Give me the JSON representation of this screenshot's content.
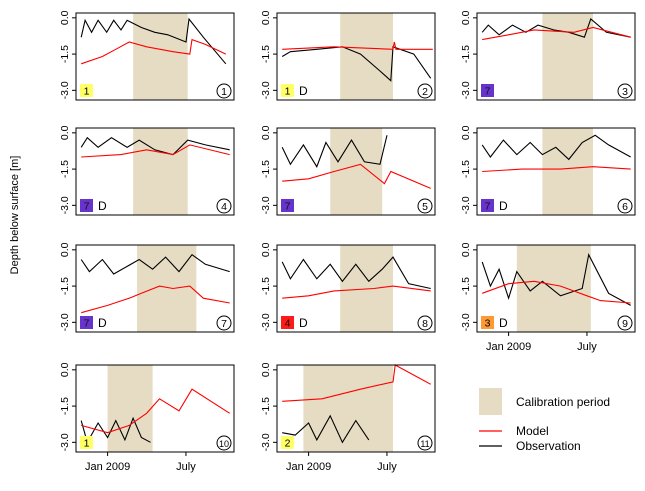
{
  "ylabel": "Depth below surface [m]",
  "legend": {
    "calibration_label": "Calibration period",
    "model_label": "Model",
    "observation_label": "Observation",
    "calibration_color": "#e6dcc3",
    "model_color": "#ff0000",
    "observation_color": "#000000"
  },
  "class_colors": {
    "1": "#ffff66",
    "2": "#ffff66",
    "3": "#ff9933",
    "4": "#ff1a1a",
    "7": "#6633cc"
  },
  "chart_data": {
    "type": "line",
    "y_axis": {
      "ticks": [
        0.0,
        -1.5,
        -3.0
      ],
      "tick_labels": [
        "0.0",
        "-1.5",
        "-3.0"
      ],
      "ylim": [
        -3.4,
        0.2
      ]
    },
    "x_axis": {
      "tick_labels": [
        "Jan 2009",
        "July"
      ],
      "range": [
        "2008-10-20",
        "2009-10-20"
      ]
    },
    "panels": [
      {
        "id": "1",
        "class": "1",
        "flag": "",
        "cal": [
          "2009-03-01",
          "2009-07-05"
        ],
        "model": [
          [
            "2008-11-01",
            -1.9
          ],
          [
            "2008-12-20",
            -1.6
          ],
          [
            "2009-01-20",
            -1.3
          ],
          [
            "2009-02-20",
            -1.0
          ],
          [
            "2009-04-01",
            -1.2
          ],
          [
            "2009-06-01",
            -1.4
          ],
          [
            "2009-07-10",
            -1.5
          ],
          [
            "2009-07-15",
            -0.9
          ],
          [
            "2009-08-15",
            -1.1
          ],
          [
            "2009-10-01",
            -1.5
          ]
        ],
        "obs": [
          [
            "2008-11-01",
            -0.8
          ],
          [
            "2008-11-10",
            -0.1
          ],
          [
            "2008-11-25",
            -0.6
          ],
          [
            "2008-12-10",
            -0.1
          ],
          [
            "2008-12-30",
            -0.6
          ],
          [
            "2009-01-15",
            -0.1
          ],
          [
            "2009-02-01",
            -0.5
          ],
          [
            "2009-02-15",
            -0.1
          ],
          [
            "2009-03-20",
            -0.4
          ],
          [
            "2009-04-20",
            -0.6
          ],
          [
            "2009-05-20",
            -0.7
          ],
          [
            "2009-07-01",
            -1.0
          ],
          [
            "2009-07-08",
            -0.05
          ],
          [
            "2009-08-10",
            -0.8
          ],
          [
            "2009-10-01",
            -1.9
          ]
        ]
      },
      {
        "id": "2",
        "class": "1",
        "flag": "D",
        "cal": [
          "2009-03-15",
          "2009-07-15"
        ],
        "model": [
          [
            "2008-11-01",
            -1.3
          ],
          [
            "2009-03-01",
            -1.2
          ],
          [
            "2009-07-15",
            -1.3
          ],
          [
            "2009-07-18",
            -1.0
          ],
          [
            "2009-07-22",
            -1.3
          ],
          [
            "2009-10-15",
            -1.3
          ]
        ],
        "obs": [
          [
            "2008-11-01",
            -1.6
          ],
          [
            "2008-11-20",
            -1.4
          ],
          [
            "2009-01-20",
            -1.3
          ],
          [
            "2009-03-20",
            -1.2
          ],
          [
            "2009-05-01",
            -1.5
          ],
          [
            "2009-06-15",
            -2.2
          ],
          [
            "2009-07-10",
            -2.6
          ],
          [
            "2009-07-15",
            -1.2
          ],
          [
            "2009-09-01",
            -1.5
          ],
          [
            "2009-10-10",
            -2.5
          ]
        ]
      },
      {
        "id": "3",
        "class": "7",
        "flag": "",
        "cal": [
          "2009-03-20",
          "2009-07-15"
        ],
        "model": [
          [
            "2008-11-01",
            -0.9
          ],
          [
            "2009-01-01",
            -0.7
          ],
          [
            "2009-03-01",
            -0.5
          ],
          [
            "2009-06-01",
            -0.6
          ],
          [
            "2009-07-15",
            -0.4
          ],
          [
            "2009-10-10",
            -0.8
          ]
        ],
        "obs": [
          [
            "2008-11-01",
            -0.6
          ],
          [
            "2008-11-15",
            -0.3
          ],
          [
            "2008-12-10",
            -0.7
          ],
          [
            "2009-01-10",
            -0.3
          ],
          [
            "2009-02-10",
            -0.6
          ],
          [
            "2009-03-10",
            -0.3
          ],
          [
            "2009-04-15",
            -0.5
          ],
          [
            "2009-05-20",
            -0.6
          ],
          [
            "2009-06-25",
            -0.8
          ],
          [
            "2009-07-10",
            -0.05
          ],
          [
            "2009-08-15",
            -0.6
          ],
          [
            "2009-10-10",
            -0.8
          ]
        ]
      },
      {
        "id": "4",
        "class": "7",
        "flag": "D",
        "cal": [
          "2009-03-01",
          "2009-07-05"
        ],
        "model": [
          [
            "2008-11-01",
            -1.0
          ],
          [
            "2009-02-01",
            -0.9
          ],
          [
            "2009-04-01",
            -0.7
          ],
          [
            "2009-06-01",
            -0.9
          ],
          [
            "2009-07-10",
            -0.5
          ],
          [
            "2009-10-10",
            -0.9
          ]
        ],
        "obs": [
          [
            "2008-11-01",
            -0.6
          ],
          [
            "2008-11-15",
            -0.2
          ],
          [
            "2008-12-10",
            -0.6
          ],
          [
            "2009-01-10",
            -0.2
          ],
          [
            "2009-02-15",
            -0.6
          ],
          [
            "2009-03-15",
            -0.3
          ],
          [
            "2009-04-20",
            -0.7
          ],
          [
            "2009-06-01",
            -0.9
          ],
          [
            "2009-07-05",
            -0.3
          ],
          [
            "2009-08-15",
            -0.5
          ],
          [
            "2009-10-10",
            -0.7
          ]
        ]
      },
      {
        "id": "5",
        "class": "7",
        "flag": "",
        "cal": [
          "2009-02-20",
          "2009-06-20"
        ],
        "model": [
          [
            "2008-11-01",
            -2.0
          ],
          [
            "2009-01-01",
            -1.9
          ],
          [
            "2009-03-01",
            -1.6
          ],
          [
            "2009-05-01",
            -1.3
          ],
          [
            "2009-06-25",
            -2.1
          ],
          [
            "2009-07-10",
            -1.6
          ],
          [
            "2009-10-10",
            -2.3
          ]
        ],
        "obs": [
          [
            "2008-11-01",
            -0.6
          ],
          [
            "2008-11-20",
            -1.3
          ],
          [
            "2008-12-20",
            -0.5
          ],
          [
            "2009-01-20",
            -1.4
          ],
          [
            "2009-02-10",
            -0.4
          ],
          [
            "2009-03-10",
            -1.2
          ],
          [
            "2009-04-10",
            -0.3
          ],
          [
            "2009-05-10",
            -1.2
          ],
          [
            "2009-06-15",
            -1.3
          ],
          [
            "2009-07-01",
            -0.1
          ]
        ]
      },
      {
        "id": "6",
        "class": "7",
        "flag": "D",
        "cal": [
          "2009-03-20",
          "2009-07-15"
        ],
        "model": [
          [
            "2008-11-01",
            -1.6
          ],
          [
            "2009-02-01",
            -1.5
          ],
          [
            "2009-05-01",
            -1.5
          ],
          [
            "2009-07-15",
            -1.4
          ],
          [
            "2009-10-10",
            -1.5
          ]
        ],
        "obs": [
          [
            "2008-11-01",
            -0.5
          ],
          [
            "2008-11-20",
            -1.0
          ],
          [
            "2008-12-20",
            -0.3
          ],
          [
            "2009-01-20",
            -0.9
          ],
          [
            "2009-02-20",
            -0.4
          ],
          [
            "2009-03-20",
            -0.9
          ],
          [
            "2009-04-20",
            -0.6
          ],
          [
            "2009-05-20",
            -1.1
          ],
          [
            "2009-06-20",
            -0.4
          ],
          [
            "2009-07-20",
            -0.1
          ],
          [
            "2009-08-20",
            -0.5
          ],
          [
            "2009-10-10",
            -1.0
          ]
        ]
      },
      {
        "id": "7",
        "class": "7",
        "flag": "D",
        "cal": [
          "2009-03-10",
          "2009-07-25"
        ],
        "model": [
          [
            "2008-11-01",
            -2.6
          ],
          [
            "2009-01-01",
            -2.3
          ],
          [
            "2009-02-20",
            -2.0
          ],
          [
            "2009-03-20",
            -1.8
          ],
          [
            "2009-05-01",
            -1.5
          ],
          [
            "2009-06-01",
            -1.6
          ],
          [
            "2009-07-10",
            -1.5
          ],
          [
            "2009-08-10",
            -2.0
          ],
          [
            "2009-10-10",
            -2.2
          ]
        ],
        "obs": [
          [
            "2008-11-01",
            -0.4
          ],
          [
            "2008-11-20",
            -0.9
          ],
          [
            "2008-12-20",
            -0.4
          ],
          [
            "2009-01-15",
            -1.0
          ],
          [
            "2009-03-15",
            -0.4
          ],
          [
            "2009-04-15",
            -0.8
          ],
          [
            "2009-05-15",
            -0.3
          ],
          [
            "2009-06-15",
            -0.9
          ],
          [
            "2009-07-15",
            -0.2
          ],
          [
            "2009-08-15",
            -0.6
          ],
          [
            "2009-10-10",
            -0.9
          ]
        ]
      },
      {
        "id": "8",
        "class": "4",
        "flag": "D",
        "cal": [
          "2009-03-15",
          "2009-07-15"
        ],
        "model": [
          [
            "2008-11-01",
            -2.0
          ],
          [
            "2009-01-01",
            -1.9
          ],
          [
            "2009-03-01",
            -1.7
          ],
          [
            "2009-06-01",
            -1.6
          ],
          [
            "2009-07-15",
            -1.5
          ],
          [
            "2009-10-10",
            -1.7
          ]
        ],
        "obs": [
          [
            "2008-11-01",
            -0.5
          ],
          [
            "2008-11-20",
            -1.2
          ],
          [
            "2008-12-20",
            -0.4
          ],
          [
            "2009-01-20",
            -1.2
          ],
          [
            "2009-02-20",
            -0.6
          ],
          [
            "2009-03-20",
            -1.3
          ],
          [
            "2009-04-20",
            -0.6
          ],
          [
            "2009-05-20",
            -1.3
          ],
          [
            "2009-06-20",
            -0.8
          ],
          [
            "2009-07-15",
            -0.3
          ],
          [
            "2009-08-20",
            -1.4
          ],
          [
            "2009-10-10",
            -1.6
          ]
        ]
      },
      {
        "id": "9",
        "class": "3",
        "flag": "D",
        "cal": [
          "2009-01-20",
          "2009-07-10"
        ],
        "model": [
          [
            "2008-11-01",
            -1.8
          ],
          [
            "2009-01-01",
            -1.4
          ],
          [
            "2009-03-01",
            -1.3
          ],
          [
            "2009-05-01",
            -1.5
          ],
          [
            "2009-07-01",
            -1.9
          ],
          [
            "2009-08-01",
            -2.1
          ],
          [
            "2009-10-10",
            -2.2
          ]
        ],
        "obs": [
          [
            "2008-11-01",
            -0.5
          ],
          [
            "2008-11-20",
            -1.5
          ],
          [
            "2008-12-10",
            -0.8
          ],
          [
            "2009-01-01",
            -2.0
          ],
          [
            "2009-01-20",
            -0.9
          ],
          [
            "2009-02-20",
            -1.7
          ],
          [
            "2009-03-20",
            -1.3
          ],
          [
            "2009-05-01",
            -1.9
          ],
          [
            "2009-06-20",
            -1.6
          ],
          [
            "2009-07-05",
            -0.2
          ],
          [
            "2009-08-20",
            -1.8
          ],
          [
            "2009-10-10",
            -2.3
          ]
        ]
      },
      {
        "id": "10",
        "class": "1",
        "flag": "",
        "cal": [
          "2009-01-01",
          "2009-04-15"
        ],
        "model": [
          [
            "2008-11-01",
            -2.3
          ],
          [
            "2009-01-01",
            -2.6
          ],
          [
            "2009-02-20",
            -2.3
          ],
          [
            "2009-04-01",
            -1.8
          ],
          [
            "2009-05-01",
            -1.2
          ],
          [
            "2009-06-15",
            -1.7
          ],
          [
            "2009-07-15",
            -0.8
          ],
          [
            "2009-10-10",
            -1.8
          ]
        ],
        "obs": [
          [
            "2008-11-01",
            -2.1
          ],
          [
            "2008-11-15",
            -3.0
          ],
          [
            "2008-12-10",
            -2.2
          ],
          [
            "2009-01-01",
            -2.8
          ],
          [
            "2009-01-20",
            -2.1
          ],
          [
            "2009-02-10",
            -2.9
          ],
          [
            "2009-03-01",
            -2.0
          ],
          [
            "2009-03-20",
            -2.8
          ],
          [
            "2009-04-10",
            -3.0
          ]
        ]
      },
      {
        "id": "11",
        "class": "2",
        "flag": "",
        "cal": [
          "2008-12-20",
          "2009-07-15"
        ],
        "model": [
          [
            "2008-11-01",
            -1.3
          ],
          [
            "2009-02-01",
            -1.2
          ],
          [
            "2009-05-01",
            -0.8
          ],
          [
            "2009-07-15",
            -0.5
          ],
          [
            "2009-07-20",
            0.2
          ],
          [
            "2009-10-10",
            -0.6
          ]
        ],
        "obs": [
          [
            "2008-11-01",
            -2.6
          ],
          [
            "2008-12-01",
            -2.7
          ],
          [
            "2009-01-01",
            -2.2
          ],
          [
            "2009-01-20",
            -2.9
          ],
          [
            "2009-02-20",
            -1.9
          ],
          [
            "2009-03-20",
            -3.0
          ],
          [
            "2009-04-20",
            -2.1
          ],
          [
            "2009-05-20",
            -2.9
          ]
        ]
      }
    ]
  }
}
